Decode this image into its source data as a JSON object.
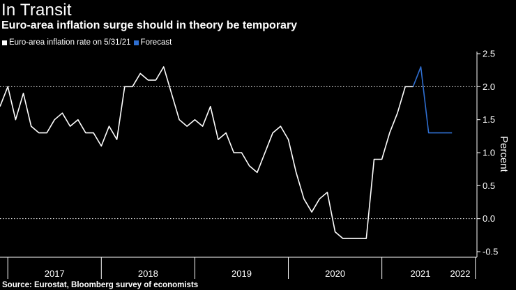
{
  "header": {
    "title": "In Transit",
    "subtitle": "Euro-area inflation surge should in theory be temporary"
  },
  "footer": {
    "source": "Source:  Eurostat, Bloomberg survey of economists"
  },
  "colors": {
    "background": "#000000",
    "actual": "#ffffff",
    "forecast": "#2f6fd1",
    "grid": "#ffffff"
  },
  "chart_data": {
    "type": "line",
    "title": "In Transit",
    "subtitle": "Euro-area inflation surge should in theory be temporary",
    "xlabel": "",
    "ylabel": "Percent",
    "ylim": [
      -0.5,
      2.5
    ],
    "yticks": [
      "2.5",
      "2.0",
      "1.5",
      "1.0",
      "0.5",
      "0.0",
      "-0.5"
    ],
    "ytick_values": [
      2.5,
      2.0,
      1.5,
      1.0,
      0.5,
      0.0,
      -0.5
    ],
    "gridlines": [
      2.0,
      0.0
    ],
    "xticks": [
      {
        "label": "2017",
        "year": 2017
      },
      {
        "label": "2018",
        "year": 2018
      },
      {
        "label": "2019",
        "year": 2019
      },
      {
        "label": "2020",
        "year": 2020
      },
      {
        "label": "2021",
        "year": 2021
      },
      {
        "label": "2022",
        "year": 2022
      }
    ],
    "x_start": "2016-12",
    "series": [
      {
        "name": "Euro-area inflation rate on 5/31/21",
        "start": "2016-12",
        "values": [
          1.7,
          2.0,
          1.5,
          1.9,
          1.4,
          1.3,
          1.3,
          1.5,
          1.6,
          1.4,
          1.5,
          1.3,
          1.3,
          1.1,
          1.4,
          1.2,
          2.0,
          2.0,
          2.2,
          2.1,
          2.1,
          2.3,
          1.9,
          1.5,
          1.4,
          1.5,
          1.4,
          1.7,
          1.2,
          1.3,
          1.0,
          1.0,
          0.8,
          0.7,
          1.0,
          1.3,
          1.4,
          1.2,
          0.7,
          0.3,
          0.1,
          0.3,
          0.4,
          -0.2,
          -0.3,
          -0.3,
          -0.3,
          -0.3,
          0.9,
          0.9,
          1.3,
          1.6,
          2.0,
          2.0
        ]
      },
      {
        "name": "Forecast",
        "start": "2021-05",
        "values": [
          2.0,
          2.3,
          1.3,
          1.3,
          1.3,
          1.3
        ]
      }
    ]
  }
}
